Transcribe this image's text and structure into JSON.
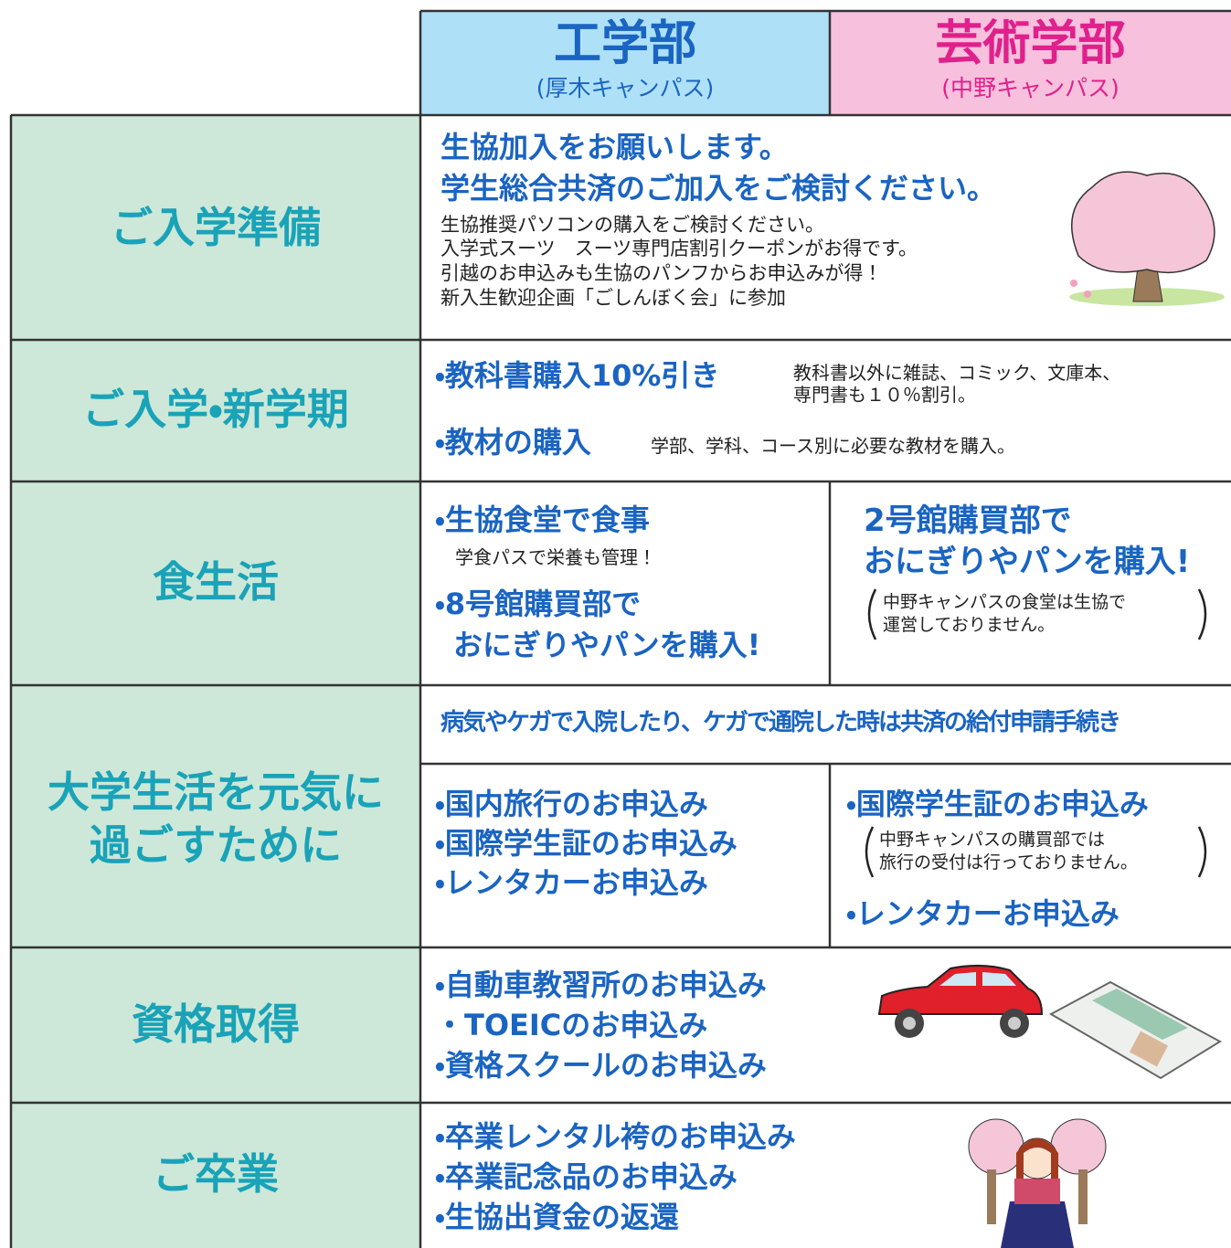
{
  "header": {
    "columns": [
      {
        "title": "工学部",
        "campus": "(厚木キャンパス)"
      },
      {
        "title": "芸術学部",
        "campus": "(中野キャンパス)"
      }
    ]
  },
  "rows": [
    {
      "label": [
        "ご入学準備"
      ],
      "headlines": [
        "生協加入をお願いします。",
        "学生総合共済のご加入をご検討ください。"
      ],
      "notes": [
        "生協推奨パソコンの購入をご検討ください。",
        "入学式スーツ　スーツ専門店割引クーポンがお得です。",
        "引越のお申込みも生協のパンフからお申込みが得！",
        "新入生歓迎企画「ごしんぼく会」に参加"
      ]
    },
    {
      "label": [
        "ご入学・新学期"
      ],
      "items": [
        {
          "title": "・教科書購入10%引き",
          "notes": [
            "教科書以外に雑誌、コミック、文庫本、",
            "専門書も１０％割引。"
          ]
        },
        {
          "title": "・教材の購入",
          "notes": [
            "学部、学科、コース別に必要な教材を購入。"
          ]
        }
      ]
    },
    {
      "label": [
        "食生活"
      ],
      "left": {
        "items": [
          "・生協食堂で食事",
          "学食パスで栄養も管理！",
          "・8号館購買部で",
          "おにぎりやパンを購入!"
        ]
      },
      "right": {
        "items": [
          "2号館購買部で",
          "おにぎりやパンを購入!"
        ],
        "notes": [
          "中野キャンパスの食堂は生協で",
          "運営しておりません。"
        ]
      }
    },
    {
      "label": [
        "大学生活を元気に",
        "過ごすために"
      ],
      "common": "病気やケガで入院したり、ケガで通院した時は共済の給付申請手続き",
      "left": {
        "items": [
          "・国内旅行のお申込み",
          "・国際学生証のお申込み",
          "・レンタカーお申込み"
        ]
      },
      "right": {
        "items": [
          "・国際学生証のお申込み",
          "・レンタカーお申込み"
        ],
        "notes": [
          "中野キャンパスの購買部では",
          "旅行の受付は行っておりません。"
        ]
      }
    },
    {
      "label": [
        "資格取得"
      ],
      "items": [
        "・自動車教習所のお申込み",
        "・TOEICのお申込み",
        "・資格スクールのお申込み"
      ]
    },
    {
      "label": [
        "ご卒業"
      ],
      "items": [
        "・卒業レンタル袴のお申込み",
        "・卒業記念品のお申込み",
        "・生協出資金の返還"
      ]
    }
  ]
}
